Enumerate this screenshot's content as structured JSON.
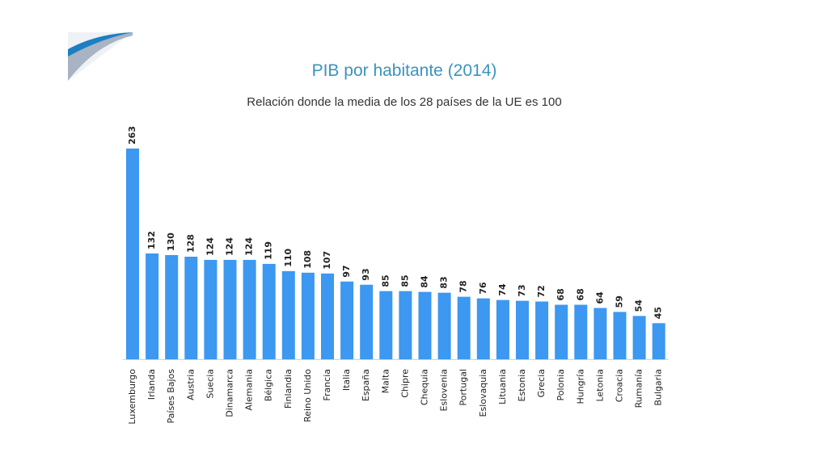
{
  "colors": {
    "bar": "#3c98f0",
    "title": "#3a93bf",
    "logo_blue": "#1c7fc2",
    "logo_gray": "#a8b3c3"
  },
  "chart_data": {
    "type": "bar",
    "title": "PIB por habitante (2014)",
    "subtitle": "Relación donde la media de los 28 países de la UE es 100",
    "xlabel": "",
    "ylabel": "",
    "ylim": [
      0,
      263
    ],
    "grid": false,
    "categories": [
      "Luxemburgo",
      "Irlanda",
      "Países Bajos",
      "Austria",
      "Suecia",
      "Dinamarca",
      "Alemania",
      "Bélgica",
      "Finlandia",
      "Reino Unido",
      "Francia",
      "Italia",
      "España",
      "Malta",
      "Chipre",
      "Chequia",
      "Eslovenia",
      "Portugal",
      "Eslovaquia",
      "Lituania",
      "Estonia",
      "Grecia",
      "Polonia",
      "Hungría",
      "Letonia",
      "Croacia",
      "Rumanía",
      "Bulgaria"
    ],
    "values": [
      263,
      132,
      130,
      128,
      124,
      124,
      124,
      119,
      110,
      108,
      107,
      97,
      93,
      85,
      85,
      84,
      83,
      78,
      76,
      74,
      73,
      72,
      68,
      68,
      64,
      59,
      54,
      45
    ]
  }
}
